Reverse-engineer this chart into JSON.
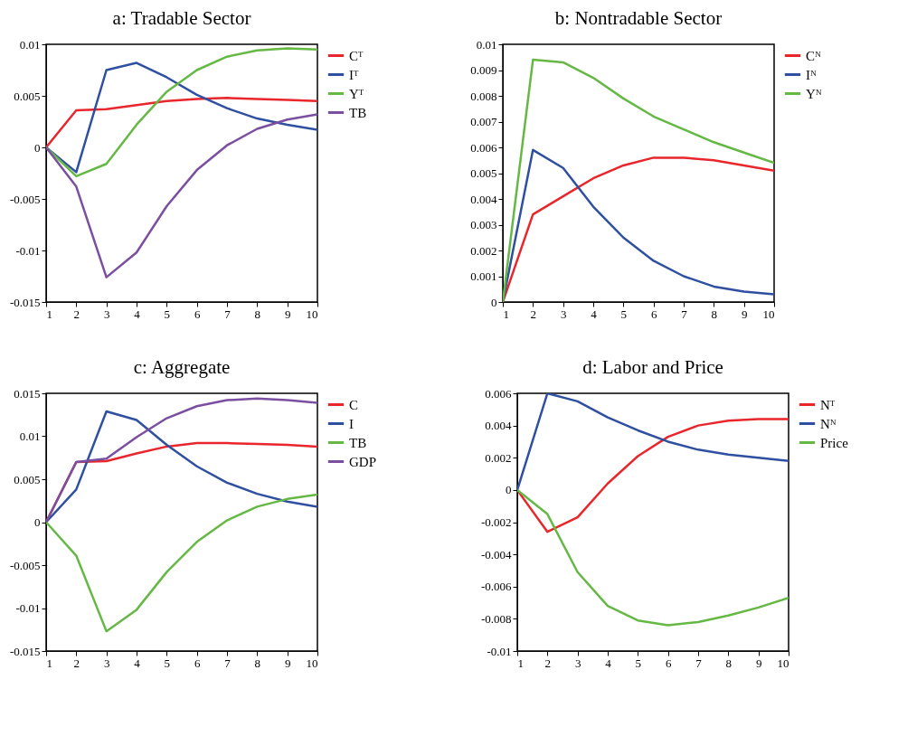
{
  "chart_data": [
    {
      "type": "line",
      "title": "a: Tradable Sector",
      "x": [
        1,
        2,
        3,
        4,
        5,
        6,
        7,
        8,
        9,
        10
      ],
      "xlim": [
        1,
        10
      ],
      "xticks": [
        1,
        2,
        3,
        4,
        5,
        6,
        7,
        8,
        9,
        10
      ],
      "ylim": [
        -0.015,
        0.01
      ],
      "yticks": [
        -0.015,
        -0.01,
        -0.005,
        0,
        0.005,
        0.01
      ],
      "legend": "top right",
      "series": [
        {
          "name": "Cᵀ",
          "color": "#e8262b",
          "values": [
            0,
            0.0036,
            0.0037,
            0.0041,
            0.0045,
            0.0047,
            0.0048,
            0.0047,
            0.0046,
            0.0045
          ]
        },
        {
          "name": "Iᵀ",
          "color": "#2f4fa0",
          "values": [
            0,
            -0.0024,
            0.0075,
            0.0082,
            0.0068,
            0.0051,
            0.0038,
            0.0028,
            0.0022,
            0.0017
          ]
        },
        {
          "name": "Yᵀ",
          "color": "#66b845",
          "values": [
            0,
            -0.0028,
            -0.0016,
            0.0022,
            0.0054,
            0.0075,
            0.0088,
            0.0094,
            0.0096,
            0.0095
          ]
        },
        {
          "name": "TB",
          "color": "#7b4fa0",
          "values": [
            0,
            -0.0038,
            -0.0126,
            -0.0102,
            -0.0057,
            -0.0022,
            0.0002,
            0.0018,
            0.0027,
            0.0032
          ]
        }
      ]
    },
    {
      "type": "line",
      "title": "b: Nontradable Sector",
      "x": [
        1,
        2,
        3,
        4,
        5,
        6,
        7,
        8,
        9,
        10
      ],
      "xlim": [
        1,
        10
      ],
      "xticks": [
        1,
        2,
        3,
        4,
        5,
        6,
        7,
        8,
        9,
        10
      ],
      "ylim": [
        0,
        0.01
      ],
      "yticks": [
        0,
        0.001,
        0.002,
        0.003,
        0.004,
        0.005,
        0.006,
        0.007,
        0.008,
        0.009,
        0.01
      ],
      "legend": "top right",
      "series": [
        {
          "name": "Cᴺ",
          "color": "#e8262b",
          "values": [
            0,
            0.0034,
            0.0041,
            0.0048,
            0.0053,
            0.0056,
            0.0056,
            0.0055,
            0.0053,
            0.0051
          ]
        },
        {
          "name": "Iᴺ",
          "color": "#2f4fa0",
          "values": [
            0,
            0.0059,
            0.0052,
            0.0037,
            0.0025,
            0.0016,
            0.001,
            0.0006,
            0.0004,
            0.0003
          ]
        },
        {
          "name": "Yᴺ",
          "color": "#66b845",
          "values": [
            0,
            0.0094,
            0.0093,
            0.0087,
            0.0079,
            0.0072,
            0.0067,
            0.0062,
            0.0058,
            0.0054
          ]
        }
      ]
    },
    {
      "type": "line",
      "title": "c: Aggregate",
      "x": [
        1,
        2,
        3,
        4,
        5,
        6,
        7,
        8,
        9,
        10
      ],
      "xlim": [
        1,
        10
      ],
      "xticks": [
        1,
        2,
        3,
        4,
        5,
        6,
        7,
        8,
        9,
        10
      ],
      "ylim": [
        -0.015,
        0.015
      ],
      "yticks": [
        -0.015,
        -0.01,
        -0.005,
        0,
        0.005,
        0.01,
        0.015
      ],
      "legend": "top right",
      "series": [
        {
          "name": "C",
          "color": "#e8262b",
          "values": [
            0,
            0.007,
            0.0071,
            0.008,
            0.0088,
            0.0092,
            0.0092,
            0.0091,
            0.009,
            0.0088
          ]
        },
        {
          "name": "I",
          "color": "#2f4fa0",
          "values": [
            0,
            0.0038,
            0.0129,
            0.0119,
            0.009,
            0.0065,
            0.0046,
            0.0033,
            0.0024,
            0.0018
          ]
        },
        {
          "name": "TB",
          "color": "#66b845",
          "values": [
            0,
            -0.0039,
            -0.0127,
            -0.0102,
            -0.0058,
            -0.0023,
            0.0002,
            0.0018,
            0.0027,
            0.0032
          ]
        },
        {
          "name": "GDP",
          "color": "#7b4fa0",
          "values": [
            0,
            0.007,
            0.0074,
            0.0099,
            0.0121,
            0.0135,
            0.0142,
            0.0144,
            0.0142,
            0.0139
          ]
        }
      ]
    },
    {
      "type": "line",
      "title": "d: Labor and Price",
      "x": [
        1,
        2,
        3,
        4,
        5,
        6,
        7,
        8,
        9,
        10
      ],
      "xlim": [
        1,
        10
      ],
      "xticks": [
        1,
        2,
        3,
        4,
        5,
        6,
        7,
        8,
        9,
        10
      ],
      "ylim": [
        -0.01,
        0.006
      ],
      "yticks": [
        -0.01,
        -0.008,
        -0.006,
        -0.004,
        -0.002,
        0,
        0.002,
        0.004,
        0.006
      ],
      "legend": "top right",
      "series": [
        {
          "name": "Nᵀ",
          "color": "#e8262b",
          "values": [
            0,
            -0.0026,
            -0.0017,
            0.0004,
            0.0021,
            0.0033,
            0.004,
            0.0043,
            0.0044,
            0.0044
          ]
        },
        {
          "name": "Nᴺ",
          "color": "#2f4fa0",
          "values": [
            0,
            0.006,
            0.0055,
            0.0045,
            0.0037,
            0.003,
            0.0025,
            0.0022,
            0.002,
            0.0018
          ]
        },
        {
          "name": "Price",
          "color": "#66b845",
          "values": [
            0,
            -0.0015,
            -0.0051,
            -0.0072,
            -0.0081,
            -0.0084,
            -0.0082,
            -0.0078,
            -0.0073,
            -0.0067
          ]
        }
      ]
    }
  ]
}
